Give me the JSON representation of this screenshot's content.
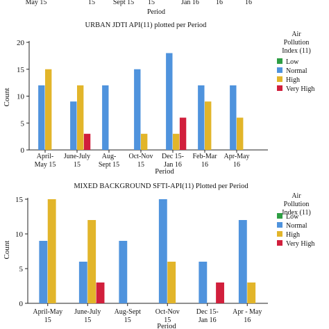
{
  "top_partial": {
    "tick_labels": [
      "May 15",
      "15",
      "Sept 15",
      "15",
      "Jan 16",
      "16",
      "16"
    ],
    "xlabel": "Period"
  },
  "chart_data": [
    {
      "type": "bar",
      "title": "URBAN JDTI API(11) plotted per Period",
      "xlabel": "Period",
      "ylabel": "Count",
      "ylim": [
        0,
        20
      ],
      "yticks": [
        0,
        5,
        10,
        15,
        20
      ],
      "categories": [
        "April-May 15",
        "June-July 15",
        "Aug-Sept 15",
        "Oct-Nov 15",
        "Dec 15-Jan 16",
        "Feb-Mar 16",
        "Apr-May 16"
      ],
      "category_lines": [
        [
          "April-",
          "May 15"
        ],
        [
          "June-July",
          "15"
        ],
        [
          "Aug-",
          "Sept 15"
        ],
        [
          "Oct-Nov",
          "15"
        ],
        [
          "Dec 15-",
          "Jan 16"
        ],
        [
          "Feb-Mar",
          "16"
        ],
        [
          "Apr-May",
          "16"
        ]
      ],
      "legend": {
        "title_lines": [
          "Air",
          "Pollution",
          "Index (11)"
        ],
        "entries": [
          "Low",
          "Normal",
          "High",
          "Very High"
        ],
        "placement": "right"
      },
      "series": [
        {
          "name": "Low",
          "color": "#2e9e44",
          "values": [
            0,
            0,
            0,
            0,
            0,
            0,
            0
          ]
        },
        {
          "name": "Normal",
          "color": "#4f93dd",
          "values": [
            12,
            9,
            12,
            15,
            18,
            12,
            12
          ]
        },
        {
          "name": "High",
          "color": "#e2b52a",
          "values": [
            15,
            12,
            0,
            3,
            3,
            9,
            6
          ]
        },
        {
          "name": "Very High",
          "color": "#d11f3c",
          "values": [
            0,
            3,
            0,
            0,
            6,
            0,
            0
          ]
        }
      ]
    },
    {
      "type": "bar",
      "title": "MIXED BACKGROUND SFTI-API(11) Plotted per Period",
      "xlabel": "Period",
      "ylabel": "Count",
      "ylim": [
        0,
        15
      ],
      "yticks": [
        0,
        5,
        10,
        15
      ],
      "categories": [
        "April-May 15",
        "June-July 15",
        "Aug-Sept 15",
        "Oct-Nov 15",
        "Dec 15-Jan 16",
        "Apr - May 16"
      ],
      "category_lines": [
        [
          "April-May",
          "15"
        ],
        [
          "June-July",
          "15"
        ],
        [
          "Aug-Sept",
          "15"
        ],
        [
          "Oct-Nov",
          "15"
        ],
        [
          "Dec 15-",
          "Jan 16"
        ],
        [
          "Apr - May",
          "16"
        ]
      ],
      "legend": {
        "title_lines": [
          "Air",
          "Pollution",
          "Index (11)"
        ],
        "entries": [
          "Low",
          "Normal",
          "High",
          "Very High"
        ],
        "placement": "right"
      },
      "series": [
        {
          "name": "Low",
          "color": "#2e9e44",
          "values": [
            0,
            0,
            0,
            0,
            0,
            0
          ]
        },
        {
          "name": "Normal",
          "color": "#4f93dd",
          "values": [
            9,
            6,
            9,
            15,
            6,
            12
          ]
        },
        {
          "name": "High",
          "color": "#e2b52a",
          "values": [
            15,
            12,
            0,
            6,
            0,
            3
          ]
        },
        {
          "name": "Very High",
          "color": "#d11f3c",
          "values": [
            0,
            3,
            0,
            0,
            3,
            0
          ]
        }
      ]
    }
  ]
}
